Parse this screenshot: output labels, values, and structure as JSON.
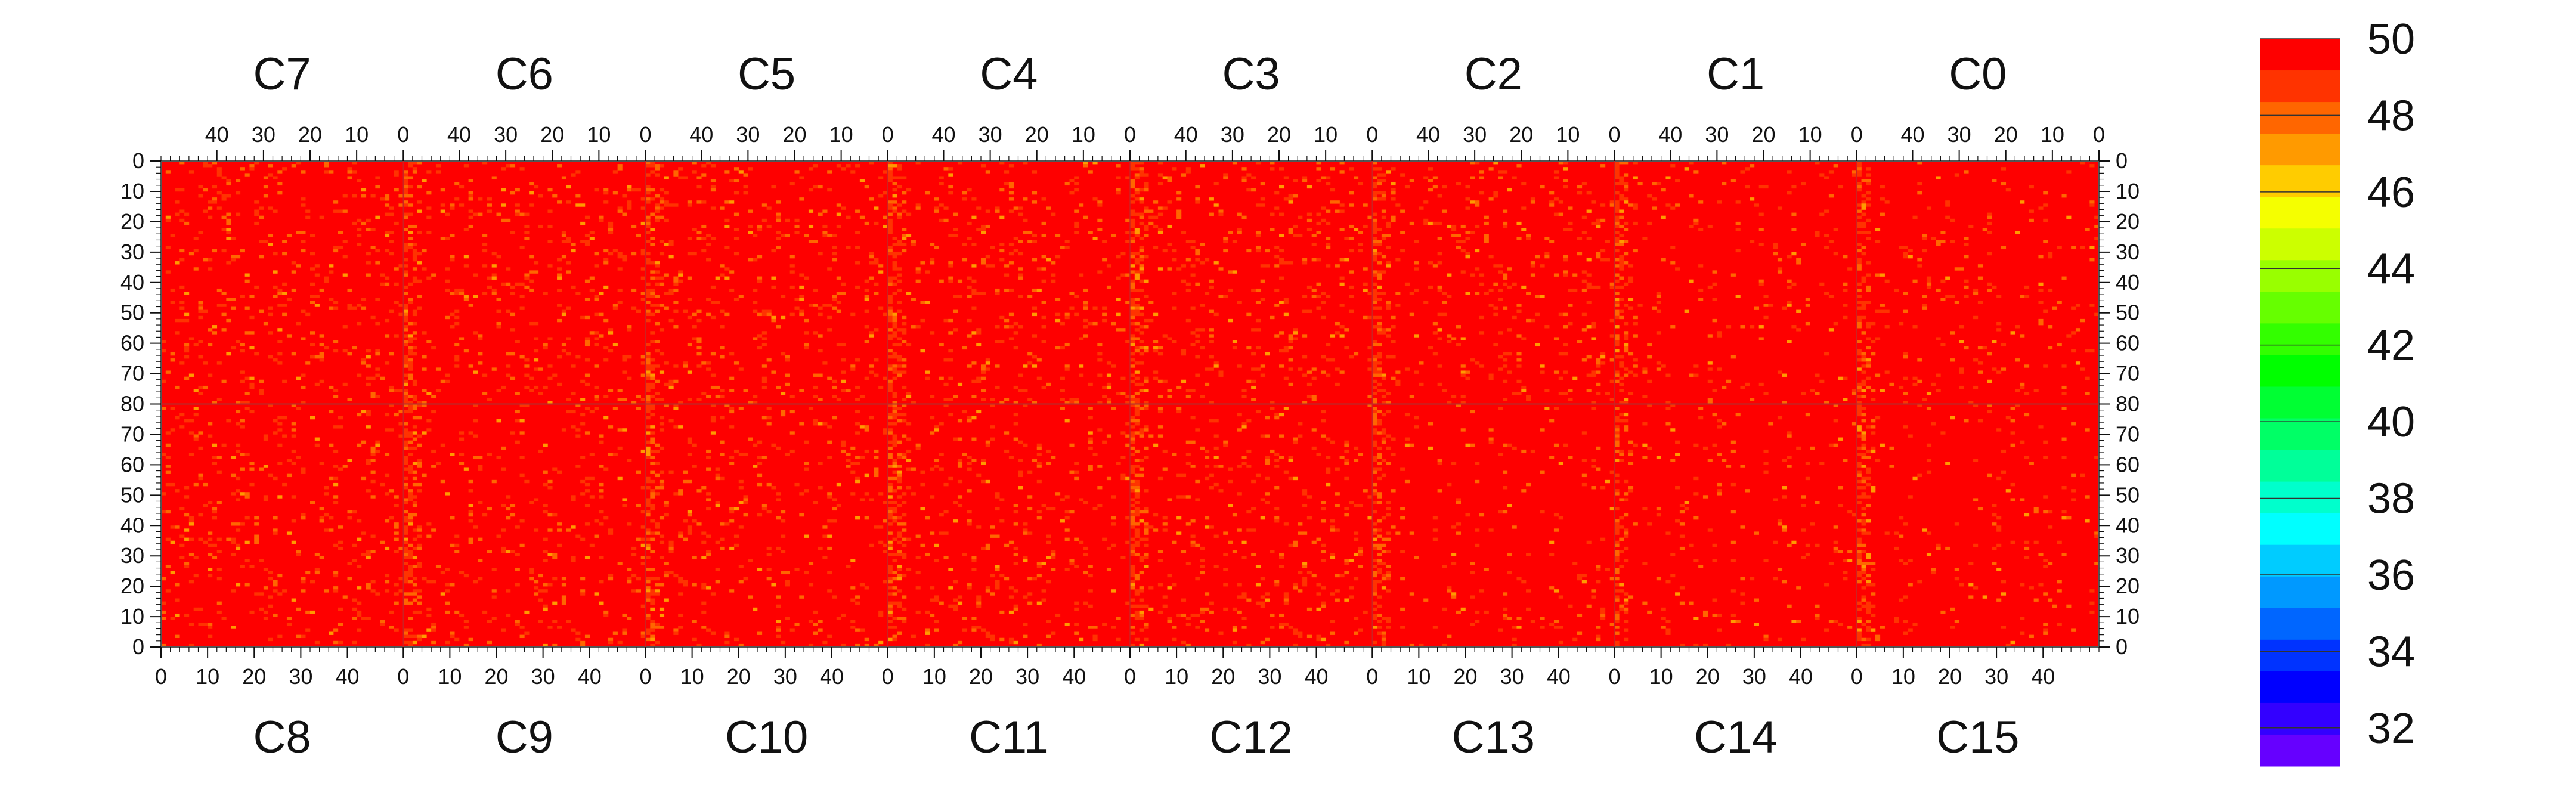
{
  "chart_data": {
    "type": "heatmap",
    "title": "",
    "chips_top": [
      "C7",
      "C6",
      "C5",
      "C4",
      "C3",
      "C2",
      "C1",
      "C0"
    ],
    "chips_bottom": [
      "C8",
      "C9",
      "C10",
      "C11",
      "C12",
      "C13",
      "C14",
      "C15"
    ],
    "chip_columns": 52,
    "chip_rows": 80,
    "top_x_ticks": [
      "40",
      "30",
      "20",
      "10",
      "0"
    ],
    "bottom_x_ticks": [
      "0",
      "10",
      "20",
      "30",
      "40"
    ],
    "y_ticks_top": [
      "0",
      "10",
      "20",
      "30",
      "40",
      "50",
      "60",
      "70",
      "80"
    ],
    "y_ticks_bottom": [
      "70",
      "60",
      "50",
      "40",
      "30",
      "20",
      "10",
      "0"
    ],
    "z_range": [
      31,
      50
    ],
    "colorbar_labels": [
      "50",
      "48",
      "46",
      "44",
      "42",
      "40",
      "38",
      "36",
      "34",
      "32"
    ],
    "colorbar_colors": [
      "#fe0000",
      "#ff3300",
      "#ff6600",
      "#ff9a00",
      "#ffcc00",
      "#f5ff00",
      "#ccff00",
      "#99ff00",
      "#66ff00",
      "#33ff00",
      "#00ff00",
      "#00ff33",
      "#00ff66",
      "#00ff99",
      "#00ffcc",
      "#00ffff",
      "#00ccff",
      "#0099ff",
      "#0066ff",
      "#0033ff",
      "#0000ff",
      "#3300ff",
      "#6600ff"
    ],
    "dominant_value": 50,
    "description_of_values": "All pixels near 50; scattered values 47-49 concentrated near chip boundary columns (column 0 of chips C7..C2 top half, column 52 side of C8..C12 bottom), occasional isolated lower-value pixels."
  }
}
